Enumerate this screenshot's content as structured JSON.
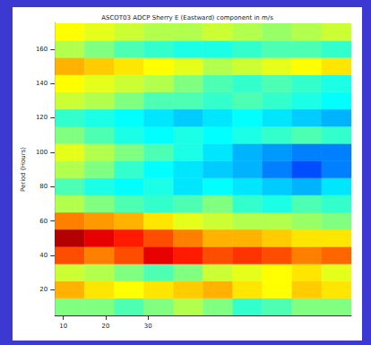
{
  "chart_data": {
    "type": "heatmap",
    "title": "ASCOT03 ADCP Sherry E (Eastward) component in m/s",
    "y_label": "Period (Hours)",
    "xlim": [
      8,
      78
    ],
    "xticks": [
      10,
      20,
      30
    ],
    "ylim": [
      5,
      175
    ],
    "yticks": [
      20,
      40,
      60,
      80,
      100,
      120,
      140,
      160
    ],
    "color_range": [
      -0.2,
      0.2
    ],
    "cells": {
      "x_edges": [
        8,
        15,
        22,
        29,
        36,
        43,
        50,
        57,
        64,
        71,
        78
      ],
      "y_edges": [
        5,
        15,
        25,
        35,
        45,
        55,
        65,
        75,
        85,
        95,
        105,
        115,
        125,
        135,
        145,
        155,
        165,
        175
      ],
      "values": [
        [
          0,
          0,
          -0.02,
          0,
          0.02,
          0,
          -0.03,
          -0.02,
          0,
          0
        ],
        [
          0.08,
          0.06,
          0.05,
          0.06,
          0.07,
          0.08,
          0.06,
          0.05,
          0.07,
          0.06
        ],
        [
          0.03,
          0.02,
          0,
          -0.02,
          0,
          0.03,
          0.04,
          0.05,
          0.06,
          0.04
        ],
        [
          0.12,
          0.1,
          0.12,
          0.16,
          0.14,
          0.12,
          0.13,
          0.12,
          0.1,
          0.11
        ],
        [
          0.18,
          0.16,
          0.14,
          0.12,
          0.1,
          0.08,
          0.08,
          0.07,
          0.06,
          0.06
        ],
        [
          0.1,
          0.09,
          0.08,
          0.06,
          0.04,
          0.03,
          0.02,
          0.02,
          0.01,
          0
        ],
        [
          0.02,
          0,
          -0.02,
          -0.03,
          -0.02,
          0,
          -0.03,
          -0.04,
          -0.02,
          -0.03
        ],
        [
          -0.02,
          -0.04,
          -0.05,
          -0.04,
          -0.06,
          -0.05,
          -0.06,
          -0.07,
          -0.08,
          -0.06
        ],
        [
          0.02,
          0,
          -0.03,
          -0.05,
          -0.06,
          -0.07,
          -0.08,
          -0.1,
          -0.12,
          -0.1
        ],
        [
          0.04,
          0.02,
          0,
          -0.02,
          -0.04,
          -0.06,
          -0.08,
          -0.09,
          -0.1,
          -0.1
        ],
        [
          0,
          -0.02,
          -0.04,
          -0.05,
          -0.04,
          -0.05,
          -0.04,
          -0.03,
          -0.02,
          -0.03
        ],
        [
          -0.03,
          -0.04,
          -0.05,
          -0.06,
          -0.07,
          -0.06,
          -0.05,
          -0.06,
          -0.07,
          -0.08
        ],
        [
          0.03,
          0.02,
          0,
          -0.02,
          -0.02,
          -0.03,
          -0.02,
          -0.03,
          -0.04,
          -0.05
        ],
        [
          0.05,
          0.04,
          0.03,
          0.02,
          0,
          -0.02,
          -0.03,
          -0.02,
          -0.03,
          -0.04
        ],
        [
          0.08,
          0.07,
          0.06,
          0.05,
          0.04,
          0.02,
          0.03,
          0.04,
          0.05,
          0.06
        ],
        [
          0.02,
          0,
          -0.02,
          -0.03,
          -0.04,
          -0.04,
          -0.03,
          -0.02,
          -0.02,
          -0.03
        ],
        [
          0.05,
          0.04,
          0.03,
          0.02,
          0.02,
          0.03,
          0.02,
          0.01,
          0.02,
          0.03
        ]
      ]
    }
  }
}
